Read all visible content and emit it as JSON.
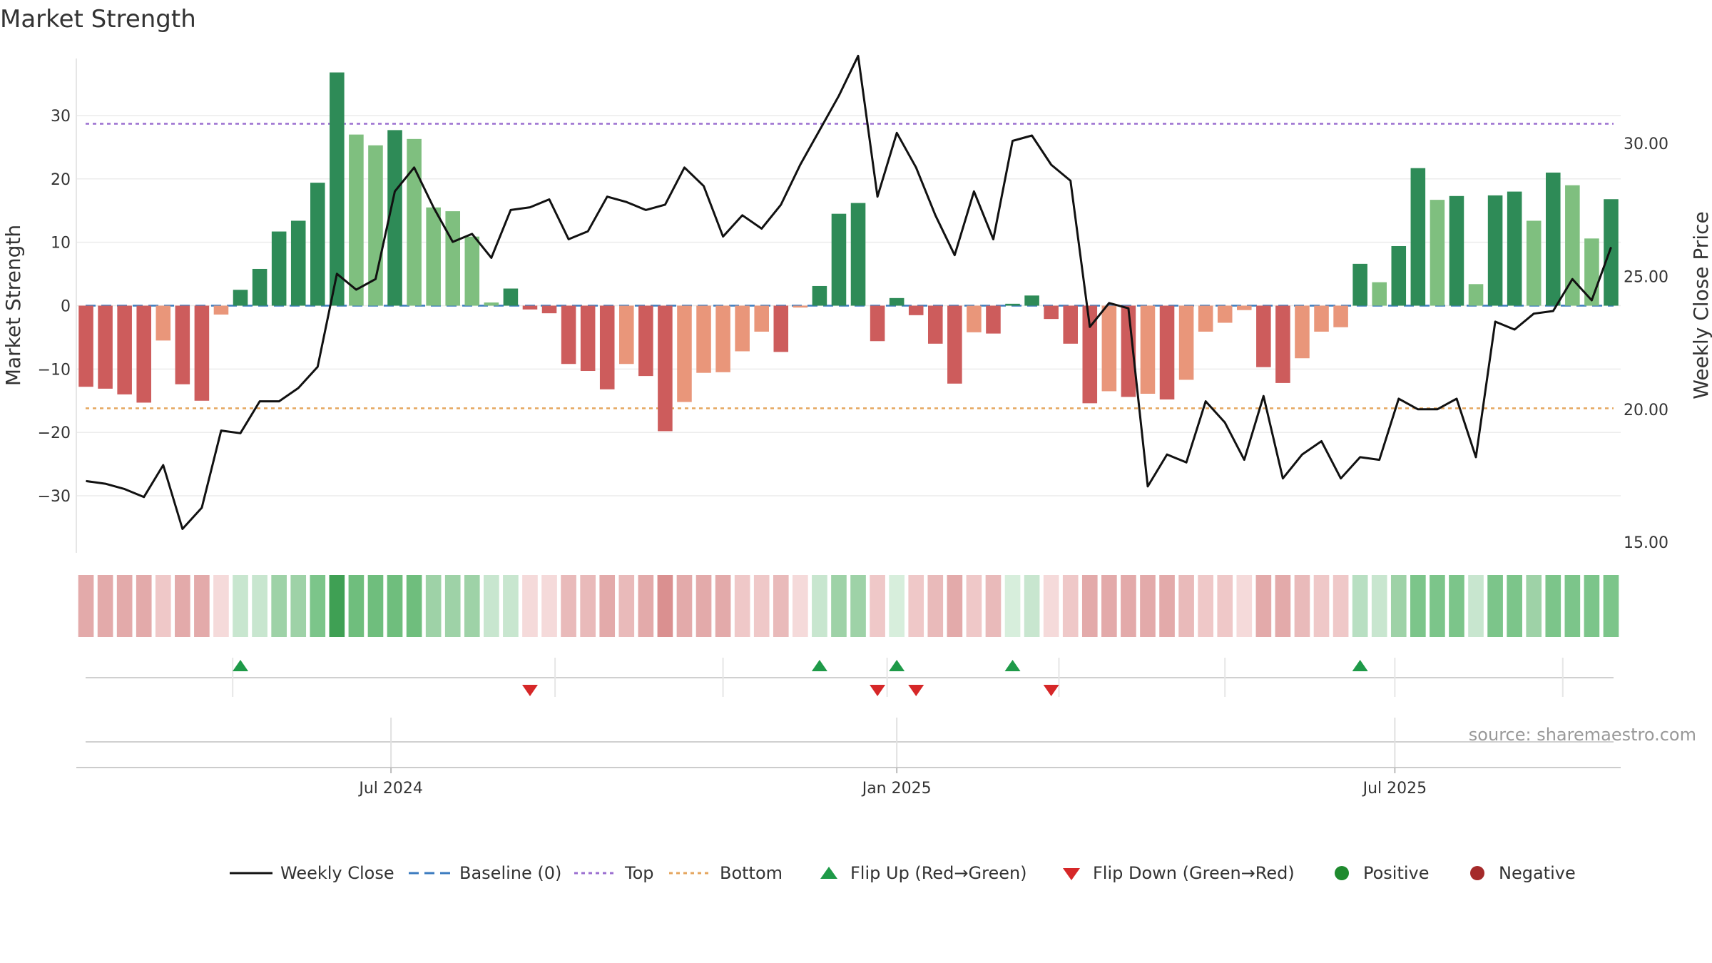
{
  "chart_data": {
    "type": "bar",
    "title": "Market Strength",
    "ylabel_left": "Market Strength",
    "ylabel_right": "Weekly Close Price",
    "source": "source: sharemaestro.com",
    "ylim_left": [
      -39,
      39
    ],
    "ylim_right": [
      14.6,
      33.2
    ],
    "yticks_left": [
      {
        "value": 30,
        "label": "30"
      },
      {
        "value": 20,
        "label": "20"
      },
      {
        "value": 10,
        "label": "10"
      },
      {
        "value": 0,
        "label": "0"
      },
      {
        "value": -10,
        "label": "−10"
      },
      {
        "value": -20,
        "label": "−20"
      },
      {
        "value": -30,
        "label": "−30"
      }
    ],
    "yticks_right": [
      {
        "value": 30,
        "label": "30.00"
      },
      {
        "value": 25,
        "label": "25.00"
      },
      {
        "value": 20,
        "label": "20.00"
      },
      {
        "value": 15,
        "label": "15.00"
      }
    ],
    "xticks": [
      {
        "index": 16.3,
        "label": "Jul 2024"
      },
      {
        "index": 42.5,
        "label": "Jan 2025"
      },
      {
        "index": 68.3,
        "label": "Jul 2025"
      }
    ],
    "reference_lines": {
      "top": 28.7,
      "bottom": -16.2,
      "baseline": 0
    },
    "strength": [
      -12.8,
      -13.1,
      -14,
      -15.3,
      -5.5,
      -12.4,
      -15,
      -1.4,
      2.5,
      5.8,
      11.7,
      13.4,
      19.4,
      36.8,
      27,
      25.3,
      27.7,
      26.3,
      15.5,
      14.9,
      10.9,
      0.5,
      2.7,
      -0.6,
      -1.2,
      -9.2,
      -10.3,
      -13.2,
      -9.2,
      -11.1,
      -19.8,
      -15.2,
      -10.6,
      -10.5,
      -7.2,
      -4.1,
      -7.3,
      -0.3,
      3.1,
      14.5,
      16.2,
      -5.6,
      1.2,
      -1.5,
      -6,
      -12.3,
      -4.2,
      -4.4,
      0.3,
      1.6,
      -2.1,
      -6,
      -15.4,
      -13.5,
      -14.4,
      -13.9,
      -14.8,
      -11.7,
      -4.1,
      -2.7,
      -0.7,
      -9.7,
      -12.2,
      -8.3,
      -4.1,
      -3.4,
      6.6,
      3.7,
      9.4,
      21.7,
      16.7,
      17.3,
      3.4,
      17.4,
      18,
      13.4,
      21,
      19,
      10.6,
      16.8
    ],
    "bar_colors": [
      "#cd5c5c",
      "#cd5c5c",
      "#cd5c5c",
      "#cd5c5c",
      "#e9967a",
      "#cd5c5c",
      "#cd5c5c",
      "#e9967a",
      "#2e8b57",
      "#2e8b57",
      "#2e8b57",
      "#2e8b57",
      "#2e8b57",
      "#2e8b57",
      "#7fbf7f",
      "#7fbf7f",
      "#2e8b57",
      "#7fbf7f",
      "#7fbf7f",
      "#7fbf7f",
      "#7fbf7f",
      "#7fbf7f",
      "#2e8b57",
      "#cd5c5c",
      "#cd5c5c",
      "#cd5c5c",
      "#cd5c5c",
      "#cd5c5c",
      "#e9967a",
      "#cd5c5c",
      "#cd5c5c",
      "#e9967a",
      "#e9967a",
      "#e9967a",
      "#e9967a",
      "#e9967a",
      "#cd5c5c",
      "#e9967a",
      "#2e8b57",
      "#2e8b57",
      "#2e8b57",
      "#cd5c5c",
      "#2e8b57",
      "#cd5c5c",
      "#cd5c5c",
      "#cd5c5c",
      "#e9967a",
      "#cd5c5c",
      "#2e8b57",
      "#2e8b57",
      "#cd5c5c",
      "#cd5c5c",
      "#cd5c5c",
      "#e9967a",
      "#cd5c5c",
      "#e9967a",
      "#cd5c5c",
      "#e9967a",
      "#e9967a",
      "#e9967a",
      "#e9967a",
      "#cd5c5c",
      "#cd5c5c",
      "#e9967a",
      "#e9967a",
      "#e9967a",
      "#2e8b57",
      "#7fbf7f",
      "#2e8b57",
      "#2e8b57",
      "#7fbf7f",
      "#2e8b57",
      "#7fbf7f",
      "#2e8b57",
      "#2e8b57",
      "#7fbf7f",
      "#2e8b57",
      "#7fbf7f",
      "#7fbf7f",
      "#2e8b57"
    ],
    "close": [
      17.3,
      17.2,
      17,
      16.7,
      17.9,
      15.5,
      16.3,
      19.2,
      19.1,
      20.3,
      20.3,
      20.8,
      21.6,
      25.1,
      24.5,
      24.9,
      28.2,
      29.1,
      27.6,
      26.3,
      26.6,
      25.7,
      27.5,
      27.6,
      27.9,
      26.4,
      26.7,
      28,
      27.8,
      27.5,
      27.7,
      29.1,
      28.4,
      26.5,
      27.3,
      26.8,
      27.7,
      29.2,
      30.5,
      31.8,
      33.3,
      28,
      30.4,
      29.1,
      27.3,
      25.8,
      28.2,
      26.4,
      30.1,
      30.3,
      29.2,
      28.6,
      23.1,
      24,
      23.8,
      17.1,
      18.3,
      18,
      20.3,
      19.5,
      18.1,
      20.5,
      17.4,
      18.3,
      18.8,
      17.4,
      18.2,
      18.1,
      20.4,
      20,
      20,
      20.4,
      18.2,
      23.3,
      23,
      23.6,
      23.7,
      24.9,
      24.1,
      26.1
    ],
    "strip_colors": [
      "#e3aaaa",
      "#e3aaaa",
      "#e3aaaa",
      "#e3aaaa",
      "#efc8c8",
      "#e3aaaa",
      "#e3aaaa",
      "#f5dada",
      "#c8e6cf",
      "#c8e6cf",
      "#9ed2a7",
      "#9ed2a7",
      "#7cc58a",
      "#3fa054",
      "#6fbe7d",
      "#6fbe7d",
      "#6fbe7d",
      "#6fbe7d",
      "#9ed2a7",
      "#9ed2a7",
      "#9ed2a7",
      "#c8e6cf",
      "#c8e6cf",
      "#f5dada",
      "#f5dada",
      "#e9baba",
      "#e9baba",
      "#e3aaaa",
      "#e9baba",
      "#e3aaaa",
      "#da9090",
      "#e3aaaa",
      "#e3aaaa",
      "#e3aaaa",
      "#efc8c8",
      "#efc8c8",
      "#e9baba",
      "#f5dada",
      "#c8e6cf",
      "#9ed2a7",
      "#9ed2a7",
      "#efc8c8",
      "#d7eedc",
      "#efc8c8",
      "#e9baba",
      "#e3aaaa",
      "#efc8c8",
      "#e9baba",
      "#d7eedc",
      "#c8e6cf",
      "#f5dada",
      "#efc8c8",
      "#e3aaaa",
      "#e3aaaa",
      "#e3aaaa",
      "#e3aaaa",
      "#e3aaaa",
      "#e9baba",
      "#efc8c8",
      "#efc8c8",
      "#f5dada",
      "#e3aaaa",
      "#e3aaaa",
      "#e9baba",
      "#efc8c8",
      "#efc8c8",
      "#b8dfc2",
      "#c8e6cf",
      "#9ed2a7",
      "#7cc58a",
      "#7cc58a",
      "#7cc58a",
      "#c8e6cf",
      "#7cc58a",
      "#7cc58a",
      "#9ed2a7",
      "#7cc58a",
      "#7cc58a",
      "#7cc58a",
      "#7cc58a"
    ],
    "flip_up": [
      8,
      38,
      42,
      48,
      66
    ],
    "flip_down": [
      23,
      41,
      43,
      50
    ],
    "legend": [
      {
        "key": "weekly-close",
        "label": "Weekly Close",
        "color": "#111111",
        "symbol": "line"
      },
      {
        "key": "baseline",
        "label": "Baseline (0)",
        "color": "#3b7bbf",
        "symbol": "dash"
      },
      {
        "key": "top",
        "label": "Top",
        "color": "#9b6fd0",
        "symbol": "dot"
      },
      {
        "key": "bottom",
        "label": "Bottom",
        "color": "#e5a65e",
        "symbol": "dot"
      },
      {
        "key": "flip-up",
        "label": "Flip Up (Red→Green)",
        "color": "#1e9a48",
        "symbol": "tri-up"
      },
      {
        "key": "flip-down",
        "label": "Flip Down (Green→Red)",
        "color": "#d62728",
        "symbol": "tri-down"
      },
      {
        "key": "positive",
        "label": "Positive",
        "color": "#1e8a2e",
        "symbol": "circle"
      },
      {
        "key": "negative",
        "label": "Negative",
        "color": "#a52a2a",
        "symbol": "circle"
      }
    ]
  }
}
